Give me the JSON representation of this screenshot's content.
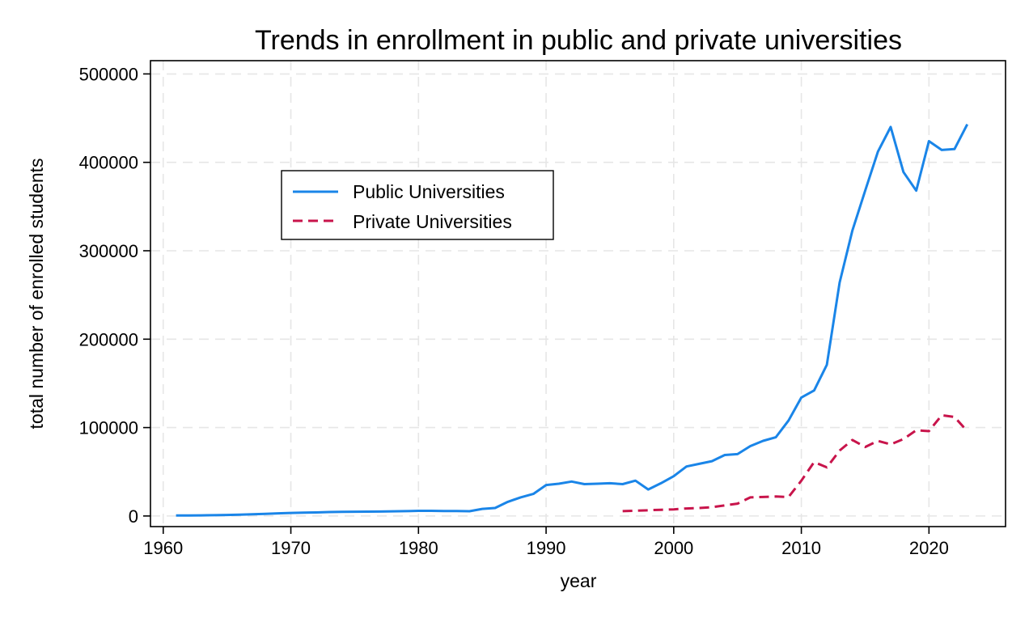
{
  "chart_data": {
    "type": "line",
    "title": "Trends in enrollment in public and private universities",
    "xlabel": "year",
    "ylabel": "total number of enrolled students",
    "xlim": [
      1959,
      2026
    ],
    "ylim": [
      -12000,
      515000
    ],
    "xticks": [
      1960,
      1970,
      1980,
      1990,
      2000,
      2010,
      2020
    ],
    "yticks": [
      0,
      100000,
      200000,
      300000,
      400000,
      500000
    ],
    "grid": true,
    "legend_position": "upper-left",
    "series": [
      {
        "name": "Public Universities",
        "color": "#1a85e8",
        "style": "solid",
        "x": [
          1961,
          1962,
          1963,
          1964,
          1965,
          1966,
          1967,
          1968,
          1969,
          1970,
          1971,
          1972,
          1973,
          1974,
          1975,
          1976,
          1977,
          1978,
          1979,
          1980,
          1981,
          1982,
          1983,
          1984,
          1985,
          1986,
          1987,
          1988,
          1989,
          1990,
          1991,
          1992,
          1993,
          1994,
          1995,
          1996,
          1997,
          1998,
          1999,
          2000,
          2001,
          2002,
          2003,
          2004,
          2005,
          2006,
          2007,
          2008,
          2009,
          2010,
          2011,
          2012,
          2013,
          2014,
          2015,
          2016,
          2017,
          2018,
          2019,
          2020,
          2021,
          2022,
          2023
        ],
        "y": [
          500,
          600,
          700,
          900,
          1200,
          1500,
          2000,
          2500,
          3000,
          3500,
          3800,
          4000,
          4500,
          4700,
          4800,
          4900,
          5000,
          5300,
          5500,
          5800,
          5800,
          5700,
          5600,
          5400,
          8000,
          9000,
          16000,
          21000,
          25000,
          35000,
          36500,
          39000,
          36000,
          36500,
          37000,
          36000,
          40000,
          30000,
          37000,
          45000,
          56000,
          59000,
          62000,
          69000,
          70000,
          79000,
          85000,
          89000,
          108000,
          134000,
          142000,
          171000,
          264000,
          323000,
          368000,
          412000,
          440000,
          389000,
          368000,
          424000,
          414000,
          415000,
          443000
        ]
      },
      {
        "name": "Private Universities",
        "color": "#c8144b",
        "style": "dashed",
        "x": [
          1996,
          1997,
          1998,
          1999,
          2000,
          2001,
          2002,
          2003,
          2004,
          2005,
          2006,
          2007,
          2008,
          2009,
          2010,
          2011,
          2012,
          2013,
          2014,
          2015,
          2016,
          2017,
          2018,
          2019,
          2020,
          2021,
          2022,
          2023
        ],
        "y": [
          5500,
          6000,
          6500,
          7000,
          7500,
          8500,
          9000,
          10000,
          12000,
          14000,
          21000,
          21500,
          22000,
          21500,
          40000,
          61000,
          55000,
          74000,
          86000,
          78000,
          85000,
          81000,
          87000,
          97000,
          96000,
          114000,
          112000,
          96000
        ]
      }
    ]
  }
}
